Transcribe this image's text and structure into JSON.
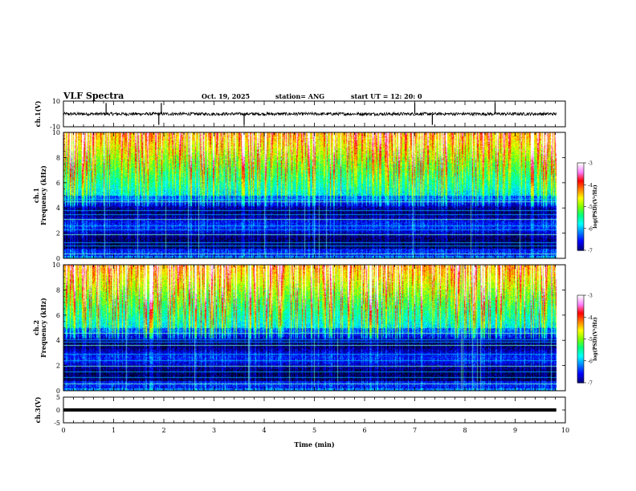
{
  "header": {
    "title": "VLF Spectra",
    "date": "Oct. 19, 2025",
    "station": "station= ANG",
    "start": "start  UT =   12: 20: 0"
  },
  "chart_data": {
    "type": "heatmap",
    "title": "VLF Spectra",
    "xlabel": "Time  (min)",
    "xlim": [
      0,
      10
    ],
    "xticks": [
      "0",
      "1",
      "2",
      "3",
      "4",
      "5",
      "6",
      "7",
      "8",
      "9",
      "10"
    ],
    "panels": [
      {
        "id": "ch1v",
        "type": "line",
        "ylabel": "ch.1(V)",
        "ylim": [
          -10,
          10
        ],
        "yticks": [
          "10",
          "-10"
        ],
        "baseline": 0,
        "noise_amplitude": 1.2,
        "spikes": [
          0.85,
          1.9,
          1.95,
          3.6,
          7.0,
          7.35,
          8.6
        ]
      },
      {
        "id": "ch1spec",
        "type": "heatmap",
        "ylabel": "ch.1 Frequency  (kHz)",
        "ylim": [
          0,
          10
        ],
        "yticks": [
          "0",
          "2",
          "4",
          "6",
          "8",
          "10"
        ],
        "colorbar": {
          "label": "log(PSD)(V²/Hz)",
          "range": [
            -7,
            -3
          ],
          "ticks": [
            "-3",
            "-4",
            "-5",
            "-6",
            "-7"
          ]
        }
      },
      {
        "id": "ch2spec",
        "type": "heatmap",
        "ylabel": "ch.2 Frequency  (kHz)",
        "ylim": [
          0,
          10
        ],
        "yticks": [
          "0",
          "2",
          "4",
          "6",
          "8",
          "10"
        ],
        "colorbar": {
          "label": "log(PSD)(V²/Hz)",
          "range": [
            -7,
            -3
          ],
          "ticks": [
            "-3",
            "-4",
            "-5",
            "-6",
            "-7"
          ]
        }
      },
      {
        "id": "ch3v",
        "type": "line",
        "ylabel": "ch.3(V)",
        "ylim": [
          -5,
          5
        ],
        "yticks": [
          "5",
          "0",
          "-5"
        ],
        "baseline": 0
      }
    ],
    "data_end_min": 9.82,
    "spectral_lines_khz": {
      "ch1": [
        0.4,
        1.0,
        1.3,
        1.9,
        2.3,
        2.6,
        3.1,
        3.5,
        3.8,
        4.5,
        4.7
      ],
      "ch2": [
        0.6,
        1.1,
        1.5,
        2.0,
        2.4,
        2.9,
        3.6,
        3.9,
        4.1,
        4.6
      ]
    },
    "colormap": [
      "#000000",
      "#00007f",
      "#0000ff",
      "#0080ff",
      "#00ffff",
      "#00ff80",
      "#80ff00",
      "#ffff00",
      "#ff8000",
      "#ff0000",
      "#ff80ff",
      "#ffffff"
    ]
  }
}
